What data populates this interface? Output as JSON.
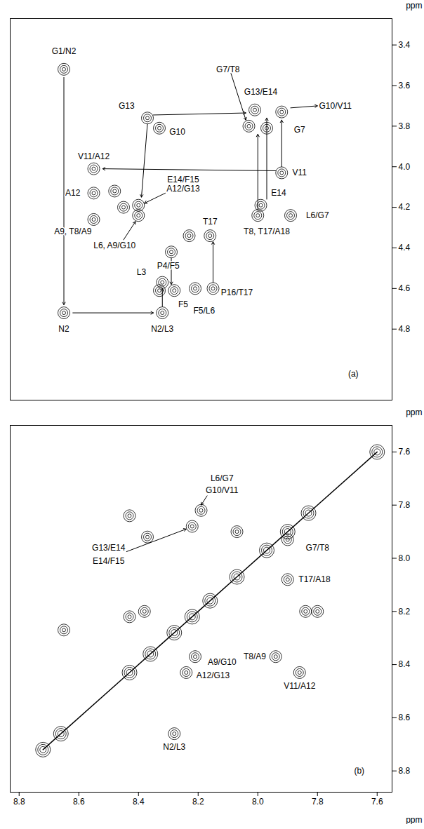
{
  "chart_data": [
    {
      "type": "scatter",
      "marker": "contour",
      "grid": false,
      "tick_labels": "y",
      "ylabel": "ppm",
      "xlim": [
        7.55,
        8.83
      ],
      "ylim": [
        3.27,
        5.15
      ],
      "yticks": [
        3.4,
        3.6,
        3.8,
        {
          "value": 4,
          "label": "4.0"
        },
        4.2,
        4.4,
        4.6,
        4.8
      ],
      "peaks": {
        "x": [
          8.65,
          8.65,
          8.32,
          8.32,
          8.33,
          8.28,
          8.21,
          8.15,
          8.29,
          8.23,
          8.16,
          8.4,
          8.4,
          8.45,
          8.55,
          8.55,
          8.55,
          8.48,
          8.37,
          8.33,
          8.03,
          7.97,
          8.01,
          7.92,
          7.99,
          8.0,
          7.89,
          7.92
        ],
        "y": [
          3.52,
          4.72,
          4.72,
          4.57,
          4.61,
          4.61,
          4.6,
          4.6,
          4.42,
          4.34,
          4.34,
          4.24,
          4.19,
          4.2,
          4.26,
          4.13,
          4.01,
          4.12,
          3.76,
          3.81,
          3.8,
          3.81,
          3.72,
          4.03,
          4.19,
          4.24,
          4.24,
          3.73
        ]
      },
      "annotations": [
        {
          "text": "G1/N2",
          "x": 8.65,
          "y": 3.43
        },
        {
          "text": "N2",
          "x": 8.65,
          "y": 4.8
        },
        {
          "text": "N2/L3",
          "x": 8.32,
          "y": 4.8
        },
        {
          "text": "L3",
          "x": 8.39,
          "y": 4.52
        },
        {
          "text": "F5",
          "x": 8.25,
          "y": 4.68
        },
        {
          "text": "F5/L6",
          "x": 8.18,
          "y": 4.71
        },
        {
          "text": "P16/T17",
          "x": 8.07,
          "y": 4.62
        },
        {
          "text": "P4/F5",
          "x": 8.3,
          "y": 4.49
        },
        {
          "text": "T17",
          "x": 8.16,
          "y": 4.27
        },
        {
          "text": "E14/F15",
          "x": 8.25,
          "y": 4.065
        },
        {
          "text": "A12/G13",
          "x": 8.25,
          "y": 4.11
        },
        {
          "text": "L6, A9/G10",
          "x": 8.48,
          "y": 4.39
        },
        {
          "text": "A9, T8/A9",
          "x": 8.62,
          "y": 4.32
        },
        {
          "text": "A12",
          "x": 8.62,
          "y": 4.13
        },
        {
          "text": "V11/A12",
          "x": 8.55,
          "y": 3.95
        },
        {
          "text": "G13",
          "x": 8.44,
          "y": 3.7
        },
        {
          "text": "G10",
          "x": 8.27,
          "y": 3.83
        },
        {
          "text": "G7/T8",
          "x": 8.1,
          "y": 3.52
        },
        {
          "text": "G13/E14",
          "x": 7.99,
          "y": 3.63
        },
        {
          "text": "G10/V11",
          "x": 7.74,
          "y": 3.7
        },
        {
          "text": "G7",
          "x": 7.86,
          "y": 3.82
        },
        {
          "text": "V11",
          "x": 7.86,
          "y": 4.03
        },
        {
          "text": "E14",
          "x": 7.93,
          "y": 4.13
        },
        {
          "text": "L6/G7",
          "x": 7.8,
          "y": 4.24
        },
        {
          "text": "T8, T17/A18",
          "x": 7.97,
          "y": 4.32
        },
        {
          "text": "(a)",
          "x": 7.68,
          "y": 5.02
        }
      ],
      "arrows": [
        {
          "x1": 8.65,
          "y1": 3.56,
          "x2": 8.65,
          "y2": 4.68
        },
        {
          "x1": 8.62,
          "y1": 4.72,
          "x2": 8.35,
          "y2": 4.72
        },
        {
          "x1": 8.32,
          "y1": 4.69,
          "x2": 8.32,
          "y2": 4.6
        },
        {
          "x1": 8.29,
          "y1": 4.45,
          "x2": 8.29,
          "y2": 4.58
        },
        {
          "x1": 8.15,
          "y1": 4.57,
          "x2": 8.15,
          "y2": 4.37
        },
        {
          "x1": 8.35,
          "y1": 3.745,
          "x2": 8.04,
          "y2": 3.735
        },
        {
          "x1": 8.37,
          "y1": 3.79,
          "x2": 8.39,
          "y2": 4.15
        },
        {
          "x1": 7.94,
          "y1": 4.02,
          "x2": 8.52,
          "y2": 4.01
        },
        {
          "x1": 8.0,
          "y1": 4.21,
          "x2": 8.0,
          "y2": 3.84
        },
        {
          "x1": 7.92,
          "y1": 4.0,
          "x2": 7.92,
          "y2": 3.77
        },
        {
          "x1": 7.97,
          "y1": 4.16,
          "x2": 7.97,
          "y2": 3.76
        },
        {
          "x1": 8.09,
          "y1": 3.54,
          "x2": 8.04,
          "y2": 3.77
        },
        {
          "x1": 7.89,
          "y1": 3.71,
          "x2": 7.8,
          "y2": 3.7
        },
        {
          "x1": 8.31,
          "y1": 4.13,
          "x2": 8.38,
          "y2": 4.18
        },
        {
          "x1": 8.45,
          "y1": 4.36,
          "x2": 8.41,
          "y2": 4.27
        }
      ]
    },
    {
      "type": "scatter",
      "marker": "contour",
      "grid": false,
      "xlabel": "ppm",
      "ylabel": "ppm",
      "xlim": [
        7.55,
        8.83
      ],
      "ylim": [
        7.5,
        8.88
      ],
      "xticks": [
        8.8,
        8.6,
        8.4,
        8.2,
        {
          "value": 8,
          "label": "8.0"
        },
        7.8,
        7.6
      ],
      "yticks": [
        7.6,
        7.8,
        {
          "value": 8,
          "label": "8.0"
        },
        8.2,
        8.4,
        8.6,
        8.8
      ],
      "diagonal": [
        8.72,
        8.66,
        8.43,
        8.36,
        8.28,
        8.22,
        8.16,
        8.07,
        7.97,
        7.9,
        7.83,
        7.6
      ],
      "peaks": {
        "x": [
          7.9,
          7.9,
          7.84,
          7.8,
          7.94,
          7.86,
          8.19,
          8.22,
          8.43,
          8.37,
          8.07,
          8.43,
          8.38,
          8.21,
          8.24,
          8.28,
          8.65
        ],
        "y": [
          7.93,
          8.08,
          8.2,
          8.2,
          8.37,
          8.43,
          7.82,
          7.88,
          7.84,
          7.92,
          7.9,
          8.22,
          8.2,
          8.37,
          8.43,
          8.66,
          8.27
        ]
      },
      "annotations": [
        {
          "text": "L6/G7",
          "x": 8.12,
          "y": 7.7
        },
        {
          "text": "G10/V11",
          "x": 8.12,
          "y": 7.745
        },
        {
          "text": "G13/E14",
          "x": 8.5,
          "y": 7.96
        },
        {
          "text": "E14/F15",
          "x": 8.5,
          "y": 8.01
        },
        {
          "text": "G7/T8",
          "x": 7.8,
          "y": 7.96
        },
        {
          "text": "T17/A18",
          "x": 7.81,
          "y": 8.08
        },
        {
          "text": "A9/G10",
          "x": 8.12,
          "y": 8.39
        },
        {
          "text": "T8/A9",
          "x": 8.01,
          "y": 8.37
        },
        {
          "text": "A12/G13",
          "x": 8.15,
          "y": 8.44
        },
        {
          "text": "V11/A12",
          "x": 7.86,
          "y": 8.48
        },
        {
          "text": "N2/L3",
          "x": 8.28,
          "y": 8.71
        },
        {
          "text": "(b)",
          "x": 7.66,
          "y": 8.8
        }
      ],
      "arrows": [
        {
          "x1": 8.17,
          "y1": 7.765,
          "x2": 8.19,
          "y2": 7.8
        },
        {
          "x1": 8.44,
          "y1": 7.975,
          "x2": 8.24,
          "y2": 7.89
        }
      ]
    }
  ]
}
